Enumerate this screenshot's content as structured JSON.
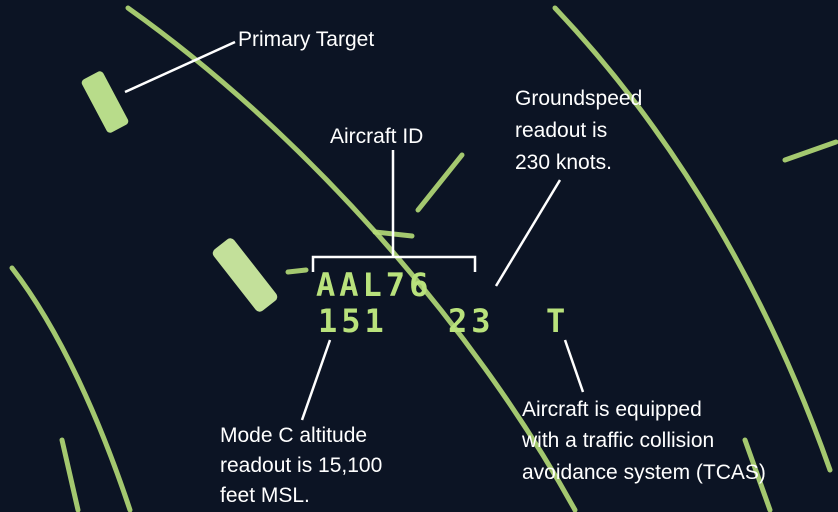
{
  "data_block": {
    "aircraft_id": "AAL76",
    "altitude": "151",
    "groundspeed": "23",
    "tcas": "T"
  },
  "annotations": [
    {
      "lines": [
        "Primary Target"
      ]
    },
    {
      "lines": [
        "Aircraft ID"
      ]
    },
    {
      "lines": [
        "Groundspeed",
        "readout is",
        "230 knots."
      ]
    },
    {
      "lines": [
        "Mode C altitude",
        "readout is 15,100",
        "feet MSL."
      ]
    },
    {
      "lines": [
        "Aircraft is equipped",
        "with a traffic collision",
        "avoidance system (TCAS)"
      ]
    }
  ]
}
